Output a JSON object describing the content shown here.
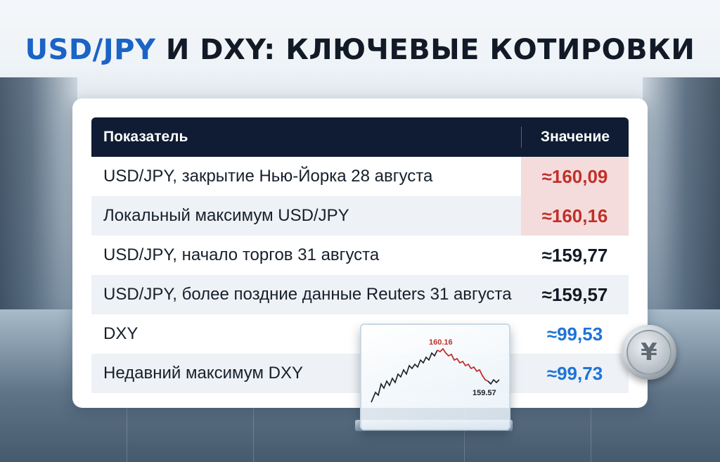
{
  "title": {
    "accent": "USD/JPY",
    "rest": " И DXY: КЛЮЧЕВЫЕ КОТИРОВКИ"
  },
  "table": {
    "headers": {
      "indicator": "Показатель",
      "value": "Значение"
    },
    "rows": [
      {
        "label": "USD/JPY, закрытие Нью-Йорка 28 августа",
        "value": "≈160,09"
      },
      {
        "label": "Локальный максимум USD/JPY",
        "value": "≈160,16"
      },
      {
        "label": "USD/JPY, начало торгов 31 августа",
        "value": "≈159,77"
      },
      {
        "label": "USD/JPY, более поздние данные Reuters 31 августа",
        "value": "≈159,57"
      },
      {
        "label": "DXY",
        "value": "≈99,53"
      },
      {
        "label": "Недавний максимум DXY",
        "value": "≈99,73"
      }
    ]
  },
  "mini_chart": {
    "peak_label": "160.16",
    "last_label": "159.57"
  },
  "coin": {
    "symbol": "¥"
  },
  "colors": {
    "accent_blue": "#1b63c6",
    "header_bg": "#0f1c33",
    "highlight_red_bg": "#f5dcdc",
    "red_value": "#c0302a",
    "blue_value": "#1e73d8"
  },
  "icons": [
    "yen-coin-icon",
    "line-chart-icon"
  ]
}
